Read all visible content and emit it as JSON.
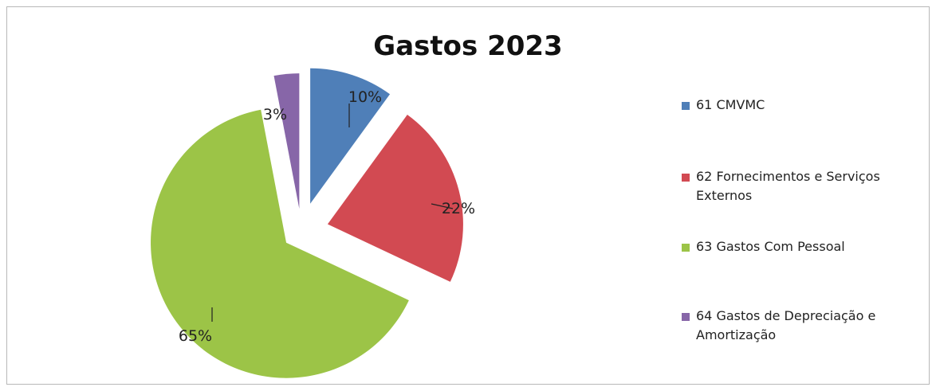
{
  "chart_data": {
    "type": "pie",
    "title": "Gastos 2023",
    "categories": [
      "61 CMVMC",
      "62 Fornecimentos e Serviços Externos",
      "63 Gastos Com Pessoal",
      "64 Gastos de Depreciação e Amortização"
    ],
    "values": [
      10,
      22,
      65,
      3
    ],
    "data_labels": [
      "10%",
      "22%",
      "65%",
      "3%"
    ],
    "colors": [
      "#4f7fb8",
      "#d24a52",
      "#9cc447",
      "#8766a8"
    ],
    "exploded": true,
    "legend_position": "right"
  }
}
